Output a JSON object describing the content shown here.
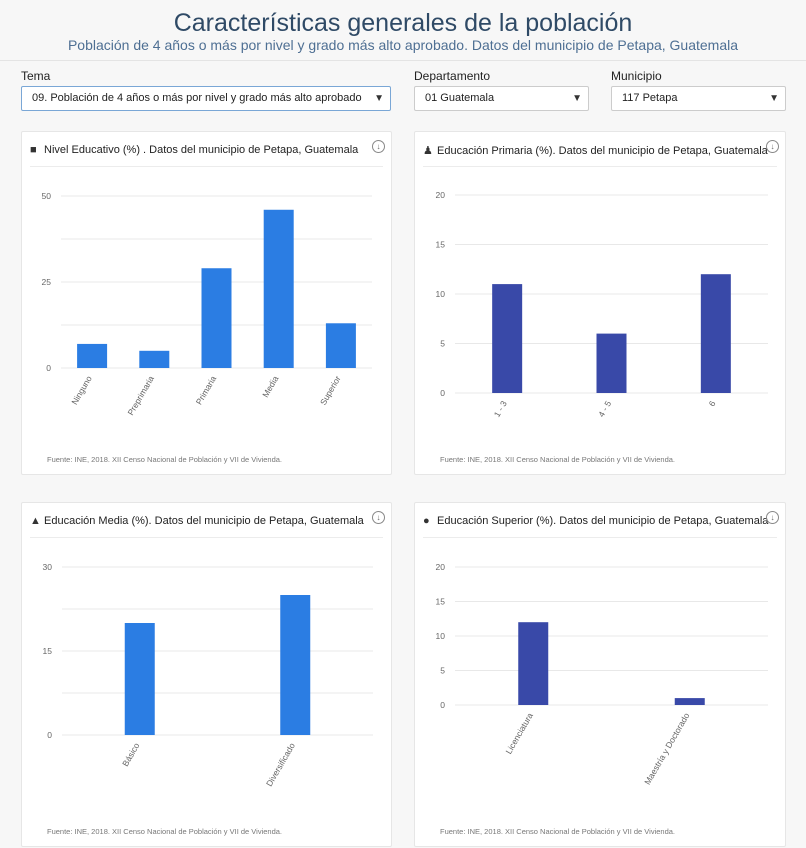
{
  "header": {
    "title": "Características generales de la población",
    "subtitle": "Población de 4 años o más por nivel y grado más alto aprobado. Datos del municipio de Petapa, Guatemala"
  },
  "filters": {
    "tema_label": "Tema",
    "tema_value": "09. Población de 4 años o más por nivel y grado más alto aprobado",
    "departamento_label": "Departamento",
    "departamento_value": "01 Guatemala",
    "municipio_label": "Municipio",
    "municipio_value": "117 Petapa"
  },
  "source_text": "Fuente: INE, 2018. XII Censo Nacional de Población y VII de Vivienda.",
  "colors": {
    "blue": "#2b7de3",
    "indigo": "#3949a8",
    "grid": "#e8e8e8",
    "tick": "#666666"
  },
  "chart_data": [
    {
      "type": "bar",
      "title": "Nivel Educativo (%) . Datos del municipio de Petapa, Guatemala",
      "icon": "book-reader-icon",
      "categories": [
        "Ninguno",
        "Preprimaria",
        "Primaria",
        "Media",
        "Superior"
      ],
      "values": [
        7,
        5,
        29,
        46,
        13
      ],
      "ylim": [
        0,
        50
      ],
      "yticks": [
        0,
        25,
        50
      ],
      "color": "#2b7de3"
    },
    {
      "type": "bar",
      "title": "Educación Primaria (%). Datos del municipio de Petapa, Guatemala",
      "icon": "child-icon",
      "categories": [
        "1 - 3",
        "4 - 5",
        "6"
      ],
      "values": [
        11,
        6,
        12
      ],
      "ylim": [
        0,
        20
      ],
      "yticks": [
        0,
        5,
        10,
        15,
        20
      ],
      "color": "#3949a8"
    },
    {
      "type": "bar",
      "title": "Educación Media (%). Datos del municipio de Petapa, Guatemala",
      "icon": "graduation-cap-icon",
      "categories": [
        "Básico",
        "Diversificado"
      ],
      "values": [
        20,
        25
      ],
      "ylim": [
        0,
        30
      ],
      "yticks": [
        0,
        15,
        30
      ],
      "color": "#2b7de3"
    },
    {
      "type": "bar",
      "title": "Educación Superior (%). Datos del municipio de Petapa, Guatemala",
      "icon": "user-graduate-icon",
      "categories": [
        "Licenciatura",
        "Maestría y Doctorado"
      ],
      "values": [
        12,
        1
      ],
      "ylim": [
        0,
        20
      ],
      "yticks": [
        0,
        5,
        10,
        15,
        20
      ],
      "color": "#3949a8"
    }
  ]
}
